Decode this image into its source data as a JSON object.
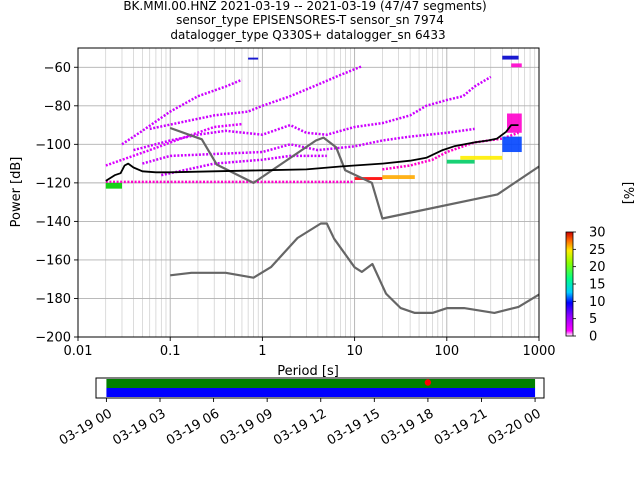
{
  "chart_data": [
    {
      "type": "heatmap",
      "title_lines": [
        "BK.MMI.00.HNZ   2021-03-19 -- 2021-03-19  (47/47 segments)",
        "sensor_type EPISENSORES-T sensor_sn 7974",
        "datalogger_type Q330S+ datalogger_sn 6433"
      ],
      "xlabel": "Period [s]",
      "ylabel": "Power [dB]",
      "xscale": "log",
      "xlim": [
        0.01,
        1000
      ],
      "ylim": [
        -200,
        -50
      ],
      "xticks": [
        {
          "value": 0.01,
          "label": "0.01"
        },
        {
          "value": 0.1,
          "label": "0.1"
        },
        {
          "value": 1,
          "label": "1"
        },
        {
          "value": 10,
          "label": "10"
        },
        {
          "value": 100,
          "label": "100"
        },
        {
          "value": 1000,
          "label": "1000"
        }
      ],
      "yticks": [
        -200,
        -180,
        -160,
        -140,
        -120,
        -100,
        -80,
        -60
      ],
      "grid": true,
      "colorbar": {
        "label": "[%]",
        "min": 0,
        "max": 30,
        "ticks": [
          0,
          5,
          10,
          15,
          20,
          25,
          30
        ]
      },
      "series": [
        {
          "role": "low noise model",
          "color": "#666666",
          "points": [
            [
              0.1,
              -168
            ],
            [
              0.17,
              -166.7
            ],
            [
              0.4,
              -166.7
            ],
            [
              0.8,
              -169.2
            ],
            [
              1.24,
              -163.7
            ],
            [
              2.4,
              -148.6
            ],
            [
              4.3,
              -141.1
            ],
            [
              5,
              -141.1
            ],
            [
              6,
              -149
            ],
            [
              10,
              -163.8
            ],
            [
              12,
              -166.2
            ],
            [
              15.6,
              -162.1
            ],
            [
              21.9,
              -177.5
            ],
            [
              31.6,
              -185
            ],
            [
              45,
              -187.5
            ],
            [
              70,
              -187.5
            ],
            [
              101,
              -185
            ],
            [
              154,
              -185
            ],
            [
              328,
              -187.5
            ],
            [
              600,
              -184.4
            ],
            [
              1000,
              -178
            ]
          ]
        },
        {
          "role": "high noise model",
          "color": "#666666",
          "points": [
            [
              0.1,
              -91.5
            ],
            [
              0.22,
              -97.4
            ],
            [
              0.32,
              -110.5
            ],
            [
              0.8,
              -120
            ],
            [
              3.8,
              -98
            ],
            [
              4.6,
              -96.5
            ],
            [
              6.3,
              -101.5
            ],
            [
              7.9,
              -113.5
            ],
            [
              15.4,
              -120
            ],
            [
              20,
              -138.5
            ],
            [
              354.8,
              -126
            ],
            [
              1000,
              -111.5
            ]
          ]
        },
        {
          "role": "mode",
          "color": "#000000",
          "points": [
            [
              0.02,
              -119
            ],
            [
              0.025,
              -116
            ],
            [
              0.029,
              -115
            ],
            [
              0.032,
              -111
            ],
            [
              0.035,
              -110
            ],
            [
              0.04,
              -112
            ],
            [
              0.05,
              -114
            ],
            [
              0.07,
              -114.5
            ],
            [
              0.1,
              -114.5
            ],
            [
              0.3,
              -114
            ],
            [
              1,
              -113.5
            ],
            [
              3,
              -113
            ],
            [
              7,
              -111.5
            ],
            [
              10,
              -111
            ],
            [
              20,
              -110
            ],
            [
              40,
              -108.5
            ],
            [
              60,
              -107
            ],
            [
              90,
              -103
            ],
            [
              120,
              -101
            ],
            [
              200,
              -99
            ],
            [
              280,
              -98
            ],
            [
              350,
              -97
            ],
            [
              440,
              -93.5
            ],
            [
              500,
              -90
            ],
            [
              600,
              -90
            ]
          ]
        }
      ],
      "density_bands": [
        {
          "color": "#cc00ff",
          "points": [
            [
              0.03,
              -100
            ],
            [
              0.05,
              -93
            ],
            [
              0.1,
              -83
            ],
            [
              0.2,
              -75
            ],
            [
              0.4,
              -70
            ],
            [
              0.6,
              -66.5
            ]
          ]
        },
        {
          "color": "#cc00ff",
          "points": [
            [
              0.06,
              -92
            ],
            [
              0.15,
              -88
            ],
            [
              0.3,
              -85
            ],
            [
              0.7,
              -83
            ],
            [
              1,
              -80
            ],
            [
              2,
              -75
            ],
            [
              4,
              -69
            ],
            [
              7,
              -64
            ],
            [
              12,
              -59.5
            ]
          ]
        },
        {
          "color": "#dd00ff",
          "points": [
            [
              0.02,
              -111
            ],
            [
              0.06,
              -103
            ],
            [
              0.15,
              -96
            ],
            [
              0.3,
              -91
            ],
            [
              0.6,
              -89.5
            ]
          ]
        },
        {
          "color": "#cc00ff",
          "points": [
            [
              0.04,
              -103
            ],
            [
              0.1,
              -98
            ],
            [
              0.2,
              -95
            ],
            [
              0.4,
              -93
            ],
            [
              1,
              -95
            ],
            [
              2,
              -90
            ],
            [
              3,
              -94
            ],
            [
              5,
              -95
            ],
            [
              10,
              -91
            ],
            [
              20,
              -89
            ],
            [
              40,
              -85
            ],
            [
              60,
              -80
            ],
            [
              100,
              -77
            ],
            [
              150,
              -75
            ],
            [
              200,
              -70
            ],
            [
              300,
              -65
            ]
          ]
        },
        {
          "color": "#cc00ff",
          "points": [
            [
              0.05,
              -110
            ],
            [
              0.1,
              -106
            ],
            [
              0.3,
              -105
            ],
            [
              1,
              -104
            ],
            [
              2,
              -100
            ],
            [
              4,
              -103
            ],
            [
              10,
              -101
            ],
            [
              20,
              -98
            ],
            [
              40,
              -96
            ],
            [
              100,
              -94
            ],
            [
              200,
              -92
            ]
          ]
        },
        {
          "color": "#cc00ff",
          "points": [
            [
              0.08,
              -116
            ],
            [
              0.3,
              -110
            ],
            [
              1,
              -108
            ],
            [
              2,
              -106
            ],
            [
              5,
              -106
            ]
          ]
        },
        {
          "color": "#ff00cc",
          "points": [
            [
              0.02,
              -119.5
            ],
            [
              0.04,
              -119.5
            ],
            [
              0.1,
              -119.5
            ],
            [
              1,
              -119.5
            ],
            [
              3,
              -119.5
            ],
            [
              7,
              -119.5
            ],
            [
              10,
              -119.5
            ]
          ]
        },
        {
          "color": "#ff00cc",
          "points": [
            [
              20,
              -113
            ],
            [
              40,
              -111
            ],
            [
              70,
              -108
            ],
            [
              100,
              -104
            ],
            [
              200,
              -99
            ],
            [
              400,
              -97
            ],
            [
              600,
              -94
            ]
          ]
        }
      ],
      "dense_patches": [
        {
          "color": "#ff0000",
          "x": [
            10,
            20
          ],
          "y": [
            -118.5,
            -117
          ]
        },
        {
          "color": "#ffaa00",
          "x": [
            20,
            45
          ],
          "y": [
            -118,
            -116
          ]
        },
        {
          "color": "#00cc00",
          "x": [
            0.02,
            0.03
          ],
          "y": [
            -123,
            -120
          ]
        },
        {
          "color": "#00cc66",
          "x": [
            100,
            200
          ],
          "y": [
            -110,
            -108
          ]
        },
        {
          "color": "#ffee00",
          "x": [
            140,
            400
          ],
          "y": [
            -108,
            -106
          ]
        },
        {
          "color": "#0044ff",
          "x": [
            400,
            650
          ],
          "y": [
            -104,
            -96
          ]
        },
        {
          "color": "#ff00cc",
          "x": [
            450,
            650
          ],
          "y": [
            -94,
            -84
          ]
        },
        {
          "color": "#0000cc",
          "x": [
            400,
            600
          ],
          "y": [
            -56,
            -54
          ]
        },
        {
          "color": "#ff00cc",
          "x": [
            500,
            650
          ],
          "y": [
            -60,
            -58
          ]
        },
        {
          "color": "#0000cc",
          "x": [
            0.7,
            0.9
          ],
          "y": [
            -56,
            -55
          ]
        }
      ]
    },
    {
      "type": "timeline",
      "xlim": [
        "2021-03-18T23:25",
        "2021-03-20T00:30"
      ],
      "xticks": [
        {
          "value": "2021-03-19T00:00",
          "label": "03-19 00"
        },
        {
          "value": "2021-03-19T03:00",
          "label": "03-19 03"
        },
        {
          "value": "2021-03-19T06:00",
          "label": "03-19 06"
        },
        {
          "value": "2021-03-19T09:00",
          "label": "03-19 09"
        },
        {
          "value": "2021-03-19T12:00",
          "label": "03-19 12"
        },
        {
          "value": "2021-03-19T15:00",
          "label": "03-19 15"
        },
        {
          "value": "2021-03-19T18:00",
          "label": "03-19 18"
        },
        {
          "value": "2021-03-19T21:00",
          "label": "03-19 21"
        },
        {
          "value": "2021-03-20T00:00",
          "label": "03-20 00"
        }
      ],
      "bands": [
        {
          "color": "#008000",
          "start": "2021-03-19T00:00",
          "end": "2021-03-20T00:00"
        },
        {
          "color": "#0000ff",
          "start": "2021-03-19T00:00",
          "end": "2021-03-20T00:00"
        }
      ],
      "markers": [
        {
          "color": "#ff0000",
          "time": "2021-03-19T18:00"
        }
      ]
    }
  ]
}
